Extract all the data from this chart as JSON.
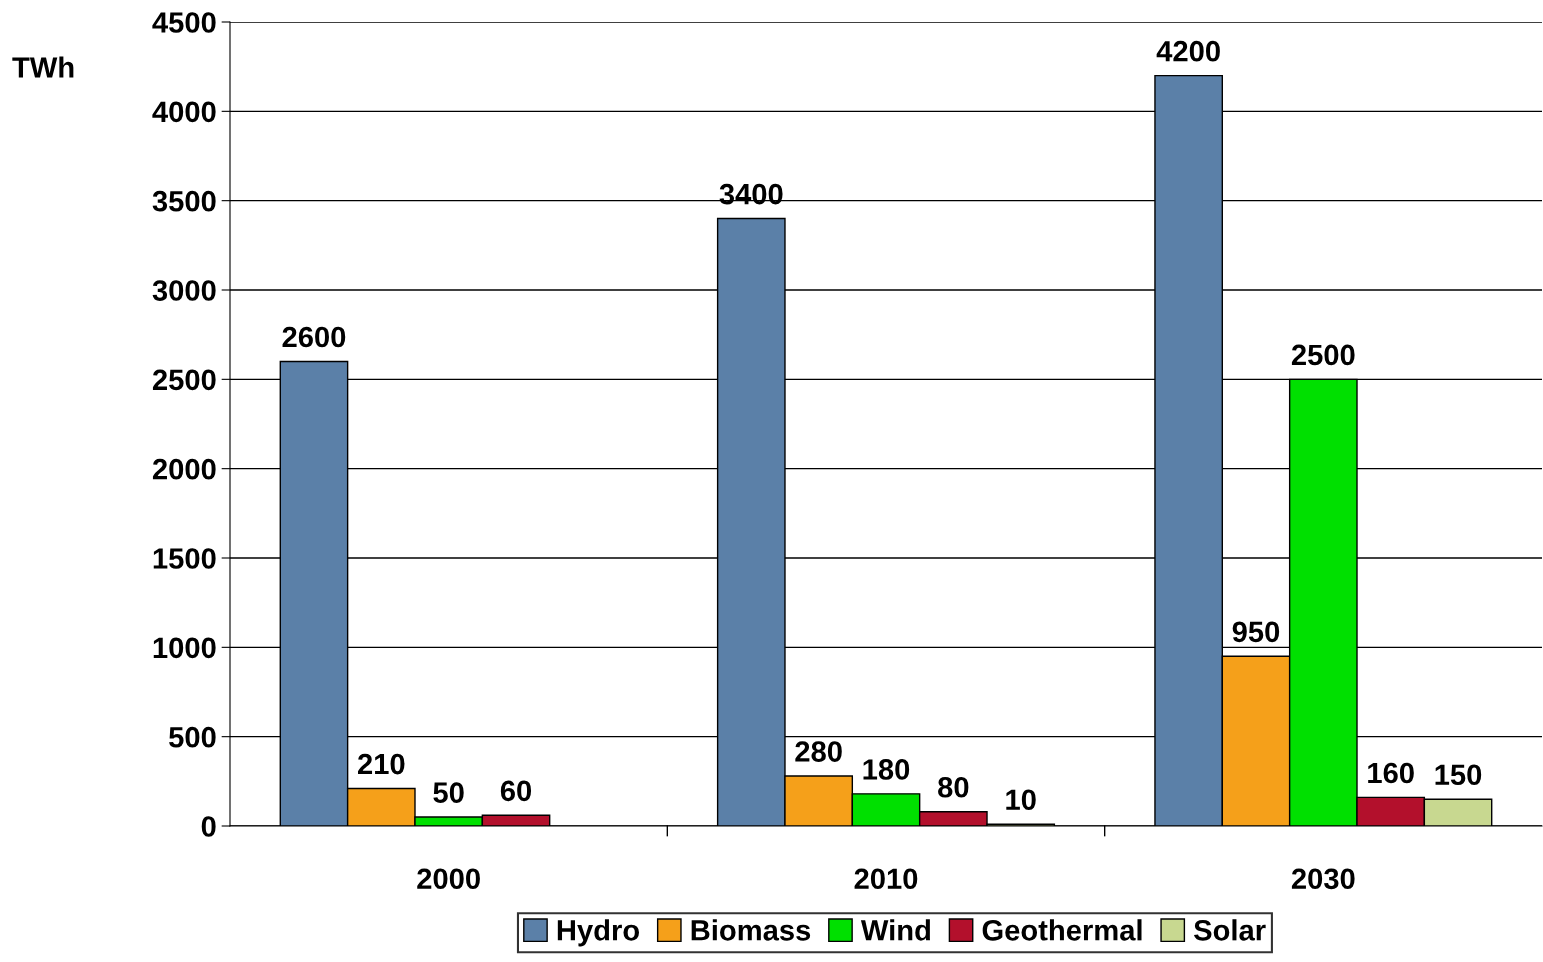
{
  "chart_data": {
    "type": "bar",
    "ylabel": "TWh",
    "categories": [
      "2000",
      "2010",
      "2030"
    ],
    "series": [
      {
        "name": "Hydro",
        "color": "#5b80a8",
        "values": [
          2600,
          3400,
          4200
        ]
      },
      {
        "name": "Biomass",
        "color": "#f5a01a",
        "values": [
          210,
          280,
          950
        ]
      },
      {
        "name": "Wind",
        "color": "#00e000",
        "values": [
          50,
          180,
          2500
        ]
      },
      {
        "name": "Geothermal",
        "color": "#b3102c",
        "values": [
          60,
          80,
          160
        ]
      },
      {
        "name": "Solar",
        "color": "#c8d890",
        "values": [
          null,
          10,
          150
        ]
      }
    ],
    "ylim": [
      0,
      4500
    ],
    "yticks": [
      0,
      500,
      1000,
      1500,
      2000,
      2500,
      3000,
      3500,
      4000,
      4500
    ],
    "grid": "y",
    "legend": "bottom",
    "data_labels": true
  }
}
